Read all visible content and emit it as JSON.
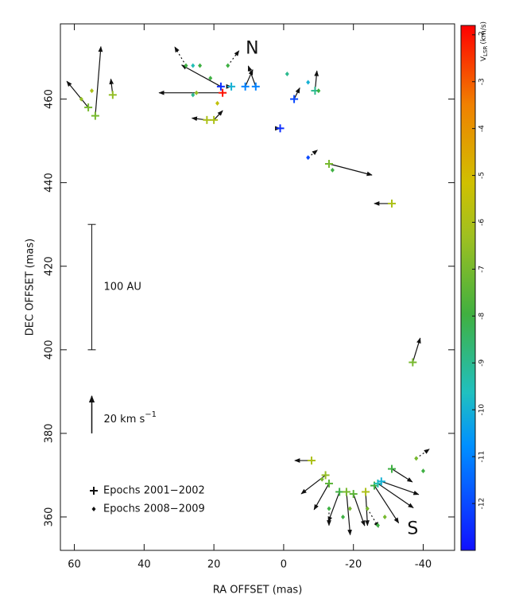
{
  "chart_data": {
    "type": "vector",
    "xlabel": "RA OFFSET (mas)",
    "ylabel": "DEC OFFSET (mas)",
    "xlim": [
      64,
      -49
    ],
    "ylim": [
      352,
      478
    ],
    "xticks": [
      60,
      40,
      20,
      0,
      -20,
      -40
    ],
    "yticks": [
      360,
      380,
      400,
      420,
      440,
      460
    ],
    "colorbar": {
      "label": "V",
      "label_sub": "LSR",
      "label_unit": "(km/s)",
      "lim": [
        -13,
        -1.8
      ],
      "ticks": [
        -2,
        -3,
        -4,
        -5,
        -6,
        -7,
        -8,
        -9,
        -10,
        -11,
        -12
      ]
    },
    "annotations": [
      {
        "text": "N",
        "x": 9,
        "y": 472
      },
      {
        "text": "S",
        "x": -37,
        "y": 357
      }
    ],
    "scale_bar": {
      "label": "100 AU",
      "x": 55,
      "y": [
        400,
        430
      ]
    },
    "velocity_arrow": {
      "value": 20,
      "label": "20 km s",
      "label_sup": "−1",
      "x": 55,
      "y": 380
    },
    "series": [
      {
        "name": "Epochs 2001−2002",
        "marker": "plus",
        "points": [
          {
            "x": 54,
            "y": 456,
            "v": -7,
            "vra": -3,
            "vdec": 37
          },
          {
            "x": 56,
            "y": 458,
            "v": -7,
            "vra": 11.5,
            "vdec": 14
          },
          {
            "x": 49,
            "y": 461,
            "v": -6.5,
            "vra": 1,
            "vdec": 8.5
          },
          {
            "x": 17.5,
            "y": 461.5,
            "v": -2,
            "vra": 34,
            "vdec": 0
          },
          {
            "x": 18,
            "y": 463,
            "v": -12.5,
            "vra": 21,
            "vdec": 11.5
          },
          {
            "x": 22,
            "y": 455,
            "v": -6,
            "vra": 8,
            "vdec": 1
          },
          {
            "x": 20,
            "y": 455,
            "v": -6,
            "vra": -4.7,
            "vdec": 5
          },
          {
            "x": 15,
            "y": 463,
            "v": -10,
            "vra": 0,
            "vdec": 0
          },
          {
            "x": 11,
            "y": 463,
            "v": -11,
            "vra": -4,
            "vdec": 9
          },
          {
            "x": 8,
            "y": 463,
            "v": -11,
            "vra": 4,
            "vdec": 11
          },
          {
            "x": 1,
            "y": 453,
            "v": -12.5,
            "vra": 0,
            "vdec": 0
          },
          {
            "x": -3,
            "y": 460,
            "v": -12,
            "vra": -3,
            "vdec": 6
          },
          {
            "x": -9,
            "y": 462,
            "v": -9,
            "vra": -1,
            "vdec": 10.6
          },
          {
            "x": -13,
            "y": 444.5,
            "v": -7,
            "vra": -23,
            "vdec": -6
          },
          {
            "x": -31,
            "y": 435,
            "v": -6,
            "vra": 9.4,
            "vdec": 0
          },
          {
            "x": -37,
            "y": 397,
            "v": -7,
            "vra": -4,
            "vdec": 13
          },
          {
            "x": -8,
            "y": 373.5,
            "v": -6,
            "vra": 9,
            "vdec": 0
          },
          {
            "x": -12,
            "y": 370,
            "v": -6.5,
            "vra": 13,
            "vdec": -10
          },
          {
            "x": -13,
            "y": 368,
            "v": -7.5,
            "vra": 8,
            "vdec": -14
          },
          {
            "x": -16,
            "y": 366,
            "v": -8,
            "vra": 6,
            "vdec": -16
          },
          {
            "x": -18,
            "y": 366,
            "v": -7,
            "vra": -2,
            "vdec": -23
          },
          {
            "x": -20,
            "y": 365.5,
            "v": -7.5,
            "vra": -6,
            "vdec": -17
          },
          {
            "x": -23.5,
            "y": 366,
            "v": -6,
            "vra": -1,
            "vdec": -18
          },
          {
            "x": -26,
            "y": 367.5,
            "v": -8,
            "vra": -13,
            "vdec": -20
          },
          {
            "x": -27,
            "y": 368,
            "v": -9.5,
            "vra": -19,
            "vdec": -13
          },
          {
            "x": -28,
            "y": 368.5,
            "v": -10,
            "vra": -20,
            "vdec": -7
          },
          {
            "x": -31,
            "y": 371.5,
            "v": -8,
            "vra": -11,
            "vdec": -7
          }
        ]
      },
      {
        "name": "Epochs 2008−2009",
        "marker": "diamond",
        "points": [
          {
            "x": 58,
            "y": 460,
            "v": -6.5
          },
          {
            "x": 55,
            "y": 462,
            "v": -6
          },
          {
            "x": 28,
            "y": 468,
            "v": -8,
            "vra": 6,
            "vdec": 10
          },
          {
            "x": 26,
            "y": 468,
            "v": -9.5
          },
          {
            "x": 24,
            "y": 468,
            "v": -8
          },
          {
            "x": 26,
            "y": 461,
            "v": -9
          },
          {
            "x": 21,
            "y": 465,
            "v": -8
          },
          {
            "x": 19,
            "y": 459,
            "v": -5.5
          },
          {
            "x": 25,
            "y": 461.5,
            "v": -6.5
          },
          {
            "x": 16,
            "y": 468,
            "v": -8,
            "vra": -6,
            "vdec": 8
          },
          {
            "x": -1,
            "y": 466,
            "v": -9
          },
          {
            "x": -7,
            "y": 464,
            "v": -10
          },
          {
            "x": -10,
            "y": 462,
            "v": -8
          },
          {
            "x": -7,
            "y": 446,
            "v": -12,
            "vra": -5,
            "vdec": 4
          },
          {
            "x": -14,
            "y": 443,
            "v": -8
          },
          {
            "x": -11,
            "y": 369,
            "v": -7
          },
          {
            "x": -13,
            "y": 362,
            "v": -8,
            "vra": 0,
            "vdec": -9
          },
          {
            "x": -17,
            "y": 360,
            "v": -8
          },
          {
            "x": -19,
            "y": 362,
            "v": -7
          },
          {
            "x": -24,
            "y": 362,
            "v": -7,
            "vra": -6,
            "vdec": -10
          },
          {
            "x": -27,
            "y": 358,
            "v": -8
          },
          {
            "x": -29,
            "y": 360,
            "v": -7
          },
          {
            "x": -38,
            "y": 374,
            "v": -7,
            "vra": -7,
            "vdec": 5
          },
          {
            "x": -40,
            "y": 371,
            "v": -8
          }
        ]
      }
    ]
  }
}
